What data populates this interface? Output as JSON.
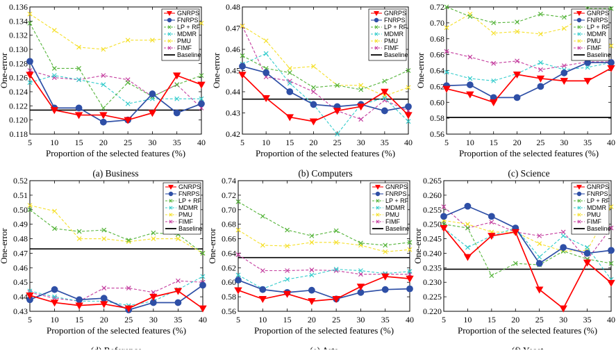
{
  "style": {
    "colors": {
      "GNRPS": "#ff0000",
      "FNRPS": "#2e4fa6",
      "LP + RF": "#55b43a",
      "MDMR": "#33cccc",
      "PMU": "#f5e02a",
      "FIMF": "#c43c9e",
      "Baseline": "#000000"
    },
    "markers": {
      "GNRPS": "triangle-down",
      "FNRPS": "circle",
      "LP + RF": "x",
      "MDMR": "x",
      "PMU": "x",
      "FIMF": "x",
      "Baseline": "none"
    },
    "dashes": {
      "GNRPS": "solid",
      "FNRPS": "solid",
      "LP + RF": "dashed",
      "MDMR": "dashed",
      "PMU": "dashed",
      "FIMF": "dashed",
      "Baseline": "solid"
    }
  },
  "chart_data": [
    {
      "type": "line",
      "caption": "(a) Business",
      "xlabel": "Proportion of the selected features (%)",
      "ylabel": "One-error",
      "x": [
        5,
        10,
        15,
        20,
        25,
        30,
        35,
        40
      ],
      "xlim": [
        5,
        40
      ],
      "ylim": [
        0.118,
        0.136
      ],
      "yticks": [
        "0.118",
        "0.120",
        "0.122",
        "0.124",
        "0.126",
        "0.128",
        "0.130",
        "0.132",
        "0.134",
        "0.136"
      ],
      "legend_position": "top-right",
      "series": [
        {
          "name": "GNRPS",
          "values": [
            0.1264,
            0.1214,
            0.1207,
            0.1207,
            0.12,
            0.121,
            0.1263,
            0.125
          ]
        },
        {
          "name": "FNRPS",
          "values": [
            0.1283,
            0.1217,
            0.1217,
            0.1197,
            0.12,
            0.1237,
            0.121,
            0.1223
          ]
        },
        {
          "name": "LP + RF",
          "values": [
            0.1337,
            0.1273,
            0.1273,
            0.1217,
            0.1253,
            0.1233,
            0.125,
            0.1263
          ]
        },
        {
          "name": "MDMR",
          "values": [
            0.1253,
            0.1263,
            0.1257,
            0.125,
            0.1223,
            0.123,
            0.123,
            0.123
          ]
        },
        {
          "name": "PMU",
          "values": [
            0.135,
            0.1327,
            0.1303,
            0.13,
            0.1313,
            0.1313,
            0.1317,
            0.1337
          ]
        },
        {
          "name": "FIMF",
          "values": [
            0.127,
            0.126,
            0.1257,
            0.1263,
            0.1257,
            0.1233,
            0.125,
            0.1217
          ]
        },
        {
          "name": "Baseline",
          "values": [
            0.1214,
            0.1214,
            0.1214,
            0.1214,
            0.1214,
            0.1214,
            0.1214,
            0.1214
          ]
        }
      ]
    },
    {
      "type": "line",
      "caption": "(b) Computers",
      "xlabel": "Proportion of the selected features (%)",
      "ylabel": "One-error",
      "x": [
        5,
        10,
        15,
        20,
        25,
        30,
        35,
        40
      ],
      "xlim": [
        5,
        40
      ],
      "ylim": [
        0.42,
        0.48
      ],
      "yticks": [
        "0.42",
        "0.43",
        "0.44",
        "0.45",
        "0.46",
        "0.47",
        "0.48"
      ],
      "legend_position": "top-right",
      "series": [
        {
          "name": "GNRPS",
          "values": [
            0.448,
            0.437,
            0.428,
            0.426,
            0.431,
            0.433,
            0.44,
            0.429
          ]
        },
        {
          "name": "FNRPS",
          "values": [
            0.452,
            0.449,
            0.44,
            0.434,
            0.433,
            0.434,
            0.431,
            0.433
          ]
        },
        {
          "name": "LP + RF",
          "values": [
            0.457,
            0.451,
            0.449,
            0.442,
            0.443,
            0.441,
            0.445,
            0.45
          ]
        },
        {
          "name": "MDMR",
          "values": [
            0.453,
            0.458,
            0.444,
            0.434,
            0.42,
            0.434,
            0.437,
            0.426
          ]
        },
        {
          "name": "PMU",
          "values": [
            0.471,
            0.464,
            0.451,
            0.452,
            0.443,
            0.443,
            0.438,
            0.442
          ]
        },
        {
          "name": "FIMF",
          "values": [
            0.471,
            0.447,
            0.445,
            0.44,
            0.431,
            0.427,
            0.436,
            0.431
          ]
        },
        {
          "name": "Baseline",
          "values": [
            0.4365,
            0.4365,
            0.4365,
            0.4365,
            0.4365,
            0.4365,
            0.4365,
            0.4365
          ]
        }
      ]
    },
    {
      "type": "line",
      "caption": "(c) Science",
      "xlabel": "Proportion of the selected features (%)",
      "ylabel": "One-error",
      "x": [
        5,
        10,
        15,
        20,
        25,
        30,
        35,
        40
      ],
      "xlim": [
        5,
        40
      ],
      "ylim": [
        0.56,
        0.72
      ],
      "yticks": [
        "0.56",
        "0.58",
        "0.60",
        "0.62",
        "0.64",
        "0.66",
        "0.68",
        "0.70",
        "0.72"
      ],
      "legend_position": "top-right",
      "series": [
        {
          "name": "GNRPS",
          "values": [
            0.617,
            0.61,
            0.6,
            0.635,
            0.63,
            0.627,
            0.627,
            0.643
          ]
        },
        {
          "name": "FNRPS",
          "values": [
            0.621,
            0.622,
            0.606,
            0.606,
            0.62,
            0.637,
            0.65,
            0.65
          ]
        },
        {
          "name": "LP + RF",
          "values": [
            0.72,
            0.708,
            0.7,
            0.701,
            0.711,
            0.707,
            0.718,
            0.718
          ]
        },
        {
          "name": "MDMR",
          "values": [
            0.638,
            0.63,
            0.627,
            0.636,
            0.65,
            0.641,
            0.644,
            0.65
          ]
        },
        {
          "name": "PMU",
          "values": [
            0.694,
            0.711,
            0.687,
            0.689,
            0.686,
            0.693,
            0.712,
            0.671
          ]
        },
        {
          "name": "FIMF",
          "values": [
            0.664,
            0.657,
            0.649,
            0.652,
            0.641,
            0.646,
            0.651,
            0.651
          ]
        },
        {
          "name": "Baseline",
          "values": [
            0.581,
            0.581,
            0.581,
            0.581,
            0.581,
            0.581,
            0.581,
            0.581
          ]
        }
      ]
    },
    {
      "type": "line",
      "caption": "(d) Reference",
      "xlabel": "Proportion of the selected features (%)",
      "ylabel": "One-error",
      "x": [
        5,
        10,
        15,
        20,
        25,
        30,
        35,
        40
      ],
      "xlim": [
        5,
        40
      ],
      "ylim": [
        0.43,
        0.52
      ],
      "yticks": [
        "0.43",
        "0.44",
        "0.45",
        "0.46",
        "0.47",
        "0.48",
        "0.49",
        "0.50",
        "0.51",
        "0.52"
      ],
      "legend_position": "top-right",
      "series": [
        {
          "name": "GNRPS",
          "values": [
            0.441,
            0.436,
            0.434,
            0.435,
            0.432,
            0.44,
            0.444,
            0.432
          ]
        },
        {
          "name": "FNRPS",
          "values": [
            0.438,
            0.445,
            0.438,
            0.439,
            0.431,
            0.436,
            0.436,
            0.448
          ]
        },
        {
          "name": "LP + RF",
          "values": [
            0.5,
            0.487,
            0.485,
            0.486,
            0.479,
            0.484,
            0.483,
            0.47
          ]
        },
        {
          "name": "MDMR",
          "values": [
            0.444,
            0.44,
            0.437,
            0.437,
            0.434,
            0.437,
            0.445,
            0.454
          ]
        },
        {
          "name": "PMU",
          "values": [
            0.503,
            0.499,
            0.48,
            0.48,
            0.478,
            0.48,
            0.48,
            0.47
          ]
        },
        {
          "name": "FIMF",
          "values": [
            0.443,
            0.439,
            0.437,
            0.446,
            0.446,
            0.443,
            0.451,
            0.45
          ]
        },
        {
          "name": "Baseline",
          "values": [
            0.473,
            0.473,
            0.473,
            0.473,
            0.473,
            0.473,
            0.473,
            0.473
          ]
        }
      ]
    },
    {
      "type": "line",
      "caption": "(e) Arts",
      "xlabel": "Proportion of the selected features (%)",
      "ylabel": "One-error",
      "x": [
        5,
        10,
        15,
        20,
        25,
        30,
        35,
        40
      ],
      "xlim": [
        5,
        40
      ],
      "ylim": [
        0.56,
        0.74
      ],
      "yticks": [
        "0.56",
        "0.58",
        "0.60",
        "0.62",
        "0.64",
        "0.66",
        "0.68",
        "0.70",
        "0.72",
        "0.74"
      ],
      "legend_position": "top-right",
      "series": [
        {
          "name": "GNRPS",
          "values": [
            0.589,
            0.577,
            0.584,
            0.574,
            0.577,
            0.594,
            0.608,
            0.605
          ]
        },
        {
          "name": "FNRPS",
          "values": [
            0.603,
            0.59,
            0.586,
            0.589,
            0.577,
            0.586,
            0.59,
            0.591
          ]
        },
        {
          "name": "LP + RF",
          "values": [
            0.711,
            0.691,
            0.672,
            0.664,
            0.671,
            0.654,
            0.651,
            0.655
          ]
        },
        {
          "name": "MDMR",
          "values": [
            0.61,
            0.591,
            0.604,
            0.61,
            0.618,
            0.616,
            0.612,
            0.615
          ]
        },
        {
          "name": "PMU",
          "values": [
            0.672,
            0.651,
            0.65,
            0.655,
            0.655,
            0.651,
            0.642,
            0.645
          ]
        },
        {
          "name": "FIMF",
          "values": [
            0.638,
            0.616,
            0.616,
            0.617,
            0.616,
            0.611,
            0.611,
            0.611
          ]
        },
        {
          "name": "Baseline",
          "values": [
            0.634,
            0.634,
            0.634,
            0.634,
            0.634,
            0.634,
            0.634,
            0.634
          ]
        }
      ]
    },
    {
      "type": "line",
      "caption": "(f) Yeast",
      "xlabel": "Proportion of the selected features (%)",
      "ylabel": "One-error",
      "x": [
        5,
        10,
        15,
        20,
        25,
        30,
        35,
        40
      ],
      "xlim": [
        5,
        40
      ],
      "ylim": [
        0.22,
        0.265
      ],
      "yticks": [
        "0.220",
        "0.225",
        "0.230",
        "0.235",
        "0.240",
        "0.245",
        "0.250",
        "0.255",
        "0.260",
        "0.265"
      ],
      "legend_position": "top-right",
      "series": [
        {
          "name": "GNRPS",
          "values": [
            0.2487,
            0.2387,
            0.246,
            0.2473,
            0.2275,
            0.221,
            0.2368,
            0.2298
          ]
        },
        {
          "name": "FNRPS",
          "values": [
            0.2527,
            0.2562,
            0.2527,
            0.2487,
            0.2365,
            0.242,
            0.24,
            0.241
          ]
        },
        {
          "name": "LP + RF",
          "values": [
            0.25,
            0.2487,
            0.2323,
            0.2365,
            0.236,
            0.2407,
            0.238,
            0.2365
          ]
        },
        {
          "name": "MDMR",
          "values": [
            0.2487,
            0.242,
            0.246,
            0.2487,
            0.2387,
            0.246,
            0.242,
            0.231
          ]
        },
        {
          "name": "PMU",
          "values": [
            0.2513,
            0.25,
            0.2473,
            0.2473,
            0.2433,
            0.2407,
            0.241,
            0.256
          ]
        },
        {
          "name": "FIMF",
          "values": [
            0.256,
            0.2487,
            0.2507,
            0.2473,
            0.246,
            0.2473,
            0.2378,
            0.2487
          ]
        },
        {
          "name": "Baseline",
          "values": [
            0.2345,
            0.2345,
            0.2345,
            0.2345,
            0.2345,
            0.2345,
            0.2345,
            0.2345
          ]
        }
      ]
    }
  ]
}
